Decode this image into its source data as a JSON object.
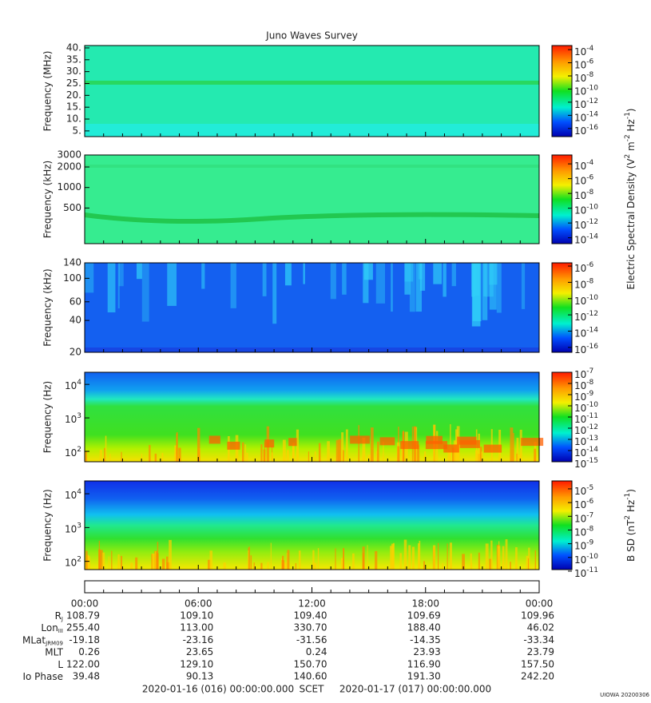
{
  "chart_data": [
    {
      "type": "spectrogram",
      "title": "Juno Waves Survey",
      "ylabel": "Frequency (MHz)",
      "ylog": false,
      "ylim": [
        2.6,
        41
      ],
      "yticks": [
        {
          "value": 5,
          "label": "5."
        },
        {
          "value": 10,
          "label": "10."
        },
        {
          "value": 15,
          "label": "15."
        },
        {
          "value": 20,
          "label": "20."
        },
        {
          "value": 25,
          "label": "25."
        },
        {
          "value": 30,
          "label": "30."
        },
        {
          "value": 35,
          "label": "35."
        },
        {
          "value": 40,
          "label": "40."
        }
      ],
      "clim": [
        5.8e-18,
        0.00042
      ],
      "cticks": [
        {
          "value": 0.0001,
          "label": "10",
          "sup": "-4"
        },
        {
          "value": 1e-06,
          "label": "10",
          "sup": "-6"
        },
        {
          "value": 1e-08,
          "label": "10",
          "sup": "-8"
        },
        {
          "value": 1e-10,
          "label": "10",
          "sup": "-10"
        },
        {
          "value": 1e-12,
          "label": "10",
          "sup": "-12"
        },
        {
          "value": 1e-14,
          "label": "10",
          "sup": "-14"
        },
        {
          "value": 1e-16,
          "label": "10",
          "sup": "-16"
        }
      ]
    },
    {
      "type": "spectrogram",
      "ylabel": "Frequency (kHz)",
      "ylog": true,
      "ylim": [
        150,
        3000
      ],
      "yticks": [
        500,
        1000,
        2000,
        3000
      ],
      "clim": [
        1.6e-15,
        0.0016
      ],
      "cticks": [
        {
          "value": 0.0001,
          "label": "10",
          "sup": "-4"
        },
        {
          "value": 1e-06,
          "label": "10",
          "sup": "-6"
        },
        {
          "value": 1e-08,
          "label": "10",
          "sup": "-8"
        },
        {
          "value": 1e-10,
          "label": "10",
          "sup": "-10"
        },
        {
          "value": 1e-12,
          "label": "10",
          "sup": "-12"
        },
        {
          "value": 1e-14,
          "label": "10",
          "sup": "-14"
        }
      ],
      "colorbar_label": [
        "Electric Spectral Density (V",
        "2",
        " m",
        "-2",
        " Hz",
        "-1",
        ")"
      ]
    },
    {
      "type": "spectrogram",
      "ylabel": "Frequency (kHz)",
      "ylog": true,
      "ylim": [
        20,
        140
      ],
      "yticks": [
        20,
        40,
        60,
        100,
        140
      ],
      "clim": [
        2.5e-17,
        2.5e-06
      ],
      "cticks": [
        {
          "value": 1e-06,
          "label": "10",
          "sup": "-6"
        },
        {
          "value": 1e-08,
          "label": "10",
          "sup": "-8"
        },
        {
          "value": 1e-10,
          "label": "10",
          "sup": "-10"
        },
        {
          "value": 1e-12,
          "label": "10",
          "sup": "-12"
        },
        {
          "value": 1e-14,
          "label": "10",
          "sup": "-14"
        },
        {
          "value": 1e-16,
          "label": "10",
          "sup": "-16"
        }
      ]
    },
    {
      "type": "spectrogram",
      "ylabel": "Frequency (Hz)",
      "ylog": true,
      "ylim": [
        49,
        23000
      ],
      "yticks": [
        {
          "value": 100,
          "label": "10",
          "sup": "2"
        },
        {
          "value": 1000,
          "label": "10",
          "sup": "3"
        },
        {
          "value": 10000,
          "label": "10",
          "sup": "4"
        }
      ],
      "clim": [
        1e-15,
        1e-07
      ],
      "cticks": [
        {
          "value": 1e-07,
          "label": "10",
          "sup": "-7"
        },
        {
          "value": 1e-08,
          "label": "10",
          "sup": "-8"
        },
        {
          "value": 1e-09,
          "label": "10",
          "sup": "-9"
        },
        {
          "value": 1e-10,
          "label": "10",
          "sup": "-10"
        },
        {
          "value": 1e-11,
          "label": "10",
          "sup": "-11"
        },
        {
          "value": 1e-12,
          "label": "10",
          "sup": "-12"
        },
        {
          "value": 1e-13,
          "label": "10",
          "sup": "-13"
        },
        {
          "value": 1e-14,
          "label": "10",
          "sup": "-14"
        },
        {
          "value": 1e-15,
          "label": "10",
          "sup": "-15"
        }
      ]
    },
    {
      "type": "spectrogram",
      "ylabel": "Frequency (Hz)",
      "ylog": true,
      "ylim": [
        57,
        24000
      ],
      "yticks": [
        {
          "value": 100,
          "label": "10",
          "sup": "2"
        },
        {
          "value": 1000,
          "label": "10",
          "sup": "3"
        },
        {
          "value": 10000,
          "label": "10",
          "sup": "4"
        }
      ],
      "clim": [
        1.3e-11,
        3.8e-05
      ],
      "cticks": [
        {
          "value": 1e-05,
          "label": "10",
          "sup": "-5"
        },
        {
          "value": 1e-06,
          "label": "10",
          "sup": "-6"
        },
        {
          "value": 1e-07,
          "label": "10",
          "sup": "-7"
        },
        {
          "value": 1e-08,
          "label": "10",
          "sup": "-8"
        },
        {
          "value": 1e-09,
          "label": "10",
          "sup": "-9"
        },
        {
          "value": 1e-10,
          "label": "10",
          "sup": "-10"
        },
        {
          "value": 1e-11,
          "label": "10",
          "sup": "-11"
        }
      ],
      "colorbar_label": [
        "B SD (nT",
        "2",
        " Hz",
        "-1",
        ")"
      ]
    }
  ],
  "time_axis": {
    "xlim": [
      0,
      24
    ],
    "xticks": [
      {
        "value": 0,
        "label": "00:00"
      },
      {
        "value": 6,
        "label": "06:00"
      },
      {
        "value": 12,
        "label": "12:00"
      },
      {
        "value": 18,
        "label": "18:00"
      },
      {
        "value": 24,
        "label": "00:00"
      }
    ],
    "minor_xticks": [
      1,
      2,
      3,
      4,
      5,
      7,
      8,
      9,
      10,
      11,
      13,
      14,
      15,
      16,
      17,
      19,
      20,
      21,
      22,
      23
    ]
  },
  "ephemeris": [
    {
      "label": "R",
      "sub": "J",
      "values": [
        "108.79",
        "109.10",
        "109.40",
        "109.69",
        "109.96"
      ]
    },
    {
      "label": "Lon",
      "sub": "III",
      "values": [
        "255.40",
        "113.00",
        "330.70",
        "188.40",
        "46.02"
      ]
    },
    {
      "label": "MLat",
      "sub": "JRM09",
      "values": [
        "-19.18",
        "-23.16",
        "-31.56",
        "-14.35",
        "-33.34"
      ]
    },
    {
      "label": "MLT",
      "values": [
        "0.26",
        "23.65",
        "0.24",
        "23.93",
        "23.79"
      ]
    },
    {
      "label": "L",
      "values": [
        "122.00",
        "129.10",
        "150.70",
        "116.90",
        "157.50"
      ]
    },
    {
      "label": "Io Phase",
      "values": [
        "39.48",
        "90.13",
        "140.60",
        "191.30",
        "242.20"
      ]
    }
  ],
  "footer": {
    "start": "2020-01-16 (016) 00:00:00.000",
    "axis": "SCET",
    "end": "2020-01-17 (017) 00:00:00.000",
    "stamp": "UIOWA 20200306"
  }
}
